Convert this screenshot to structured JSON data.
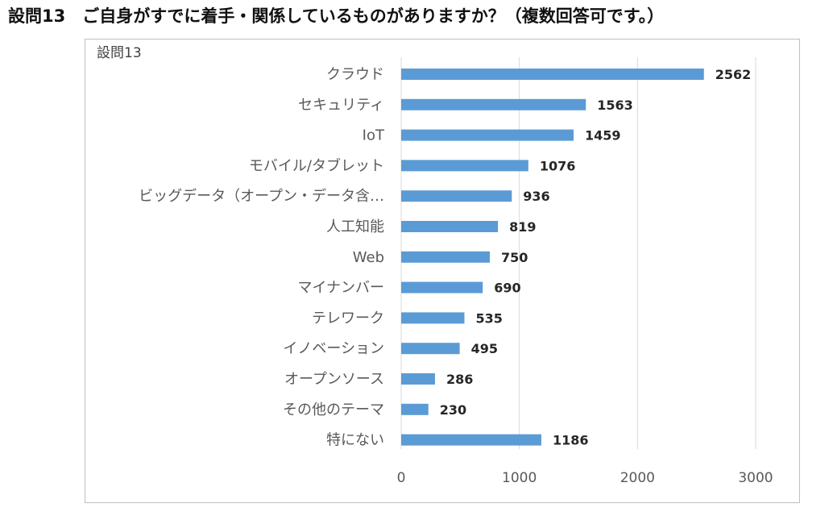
{
  "heading": "設問13　ご自身がすでに着手・関係しているものがありますか？（複数回答可です。）",
  "chart_data": {
    "type": "bar",
    "orientation": "horizontal",
    "title": "設問13",
    "categories": [
      "クラウド",
      "セキュリティ",
      "IoT",
      "モバイル/タブレット",
      "ビッグデータ（オープン・データ含…",
      "人工知能",
      "Web",
      "マイナンバー",
      "テレワーク",
      "イノベーション",
      "オープンソース",
      "その他のテーマ",
      "特にない"
    ],
    "values": [
      2562,
      1563,
      1459,
      1076,
      936,
      819,
      750,
      690,
      535,
      495,
      286,
      230,
      1186
    ],
    "xlim": [
      0,
      3000
    ],
    "xticks": [
      0,
      1000,
      2000,
      3000
    ],
    "grid": true,
    "legend": "none",
    "bar_color": "#5b9bd5"
  }
}
